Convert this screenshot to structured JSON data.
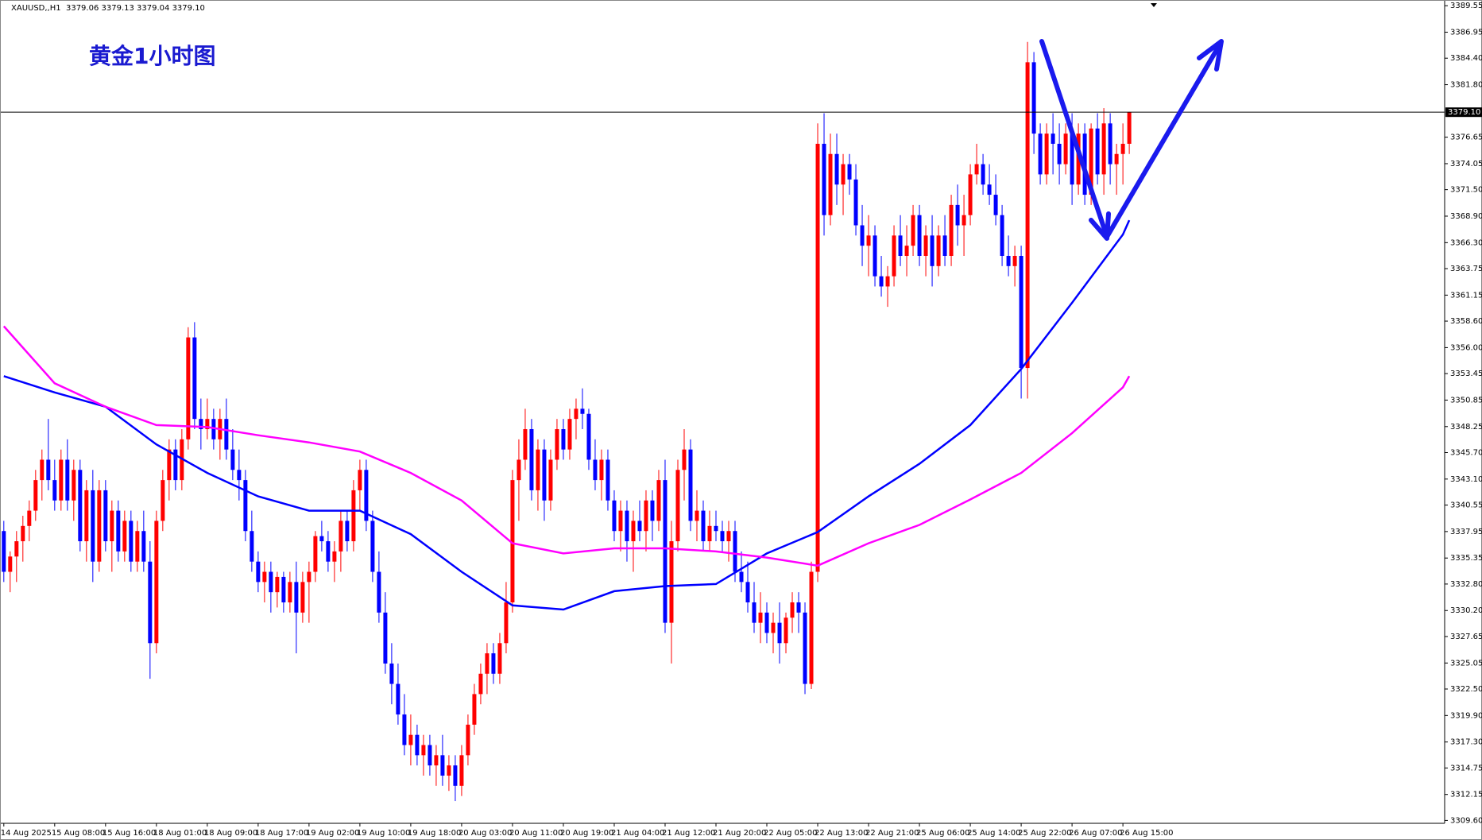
{
  "chart_data": {
    "type": "candlestick",
    "symbol_info": "XAUUSD,,H1  3379.06 3379.13 3379.04 3379.10",
    "title": "黄金1小时图",
    "up_color": "#ff0000",
    "down_color": "#0000ff",
    "ylim": [
      3309.32,
      3390.11
    ],
    "yticks": [
      3389.55,
      3386.95,
      {
        "value": 3384.4,
        "label": "3384.40"
      },
      {
        "value": 3381.8,
        "label": "3381.80"
      },
      3376.65,
      3374.05,
      {
        "value": 3371.5,
        "label": "3371.50"
      },
      {
        "value": 3368.9,
        "label": "3368.90"
      },
      {
        "value": 3366.3,
        "label": "3366.30"
      },
      3363.75,
      3361.15,
      {
        "value": 3358.6,
        "label": "3358.60"
      },
      {
        "value": 3356,
        "label": "3356.00"
      },
      3353.45,
      3350.85,
      3348.25,
      {
        "value": 3345.7,
        "label": "3345.70"
      },
      {
        "value": 3343.1,
        "label": "3343.10"
      },
      3340.55,
      3337.95,
      3335.35,
      {
        "value": 3332.8,
        "label": "3332.80"
      },
      {
        "value": 3330.2,
        "label": "3330.20"
      },
      3327.65,
      3325.05,
      {
        "value": 3322.5,
        "label": "3322.50"
      },
      {
        "value": 3319.9,
        "label": "3319.90"
      },
      {
        "value": 3317.3,
        "label": "3317.30"
      },
      3314.75,
      3312.15,
      {
        "value": 3309.6,
        "label": "3309.60"
      }
    ],
    "price_line": {
      "value": 3379.1,
      "label": "3379.10"
    },
    "xlim": [
      -0.6,
      226.6
    ],
    "xticks": [
      {
        "value": 0,
        "label": "14 Aug 2025"
      },
      {
        "value": 8,
        "label": "15 Aug 08:00"
      },
      {
        "value": 16,
        "label": "15 Aug 16:00"
      },
      {
        "value": 24,
        "label": "18 Aug 01:00"
      },
      {
        "value": 32,
        "label": "18 Aug 09:00"
      },
      {
        "value": 40,
        "label": "18 Aug 17:00"
      },
      {
        "value": 48,
        "label": "19 Aug 02:00"
      },
      {
        "value": 56,
        "label": "19 Aug 10:00"
      },
      {
        "value": 64,
        "label": "19 Aug 18:00"
      },
      {
        "value": 72,
        "label": "20 Aug 03:00"
      },
      {
        "value": 80,
        "label": "20 Aug 11:00"
      },
      {
        "value": 88,
        "label": "20 Aug 19:00"
      },
      {
        "value": 96,
        "label": "21 Aug 04:00"
      },
      {
        "value": 104,
        "label": "21 Aug 12:00"
      },
      {
        "value": 112,
        "label": "21 Aug 20:00"
      },
      {
        "value": 120,
        "label": "22 Aug 05:00"
      },
      {
        "value": 128,
        "label": "22 Aug 13:00"
      },
      {
        "value": 136,
        "label": "22 Aug 21:00"
      },
      {
        "value": 144,
        "label": "25 Aug 06:00"
      },
      {
        "value": 152,
        "label": "25 Aug 14:00"
      },
      {
        "value": 160,
        "label": "25 Aug 22:00"
      },
      {
        "value": 168,
        "label": "26 Aug 07:00"
      },
      {
        "value": 176,
        "label": "26 Aug 15:00"
      }
    ],
    "open": [
      3338,
      3334,
      3335.5,
      3337,
      3338.5,
      3340,
      3343,
      3345,
      3343,
      3341,
      3345,
      3341,
      3344,
      3337,
      3342,
      3335,
      3342,
      3337,
      3340,
      3336,
      3339,
      3335,
      3338,
      3335,
      3327,
      3339,
      3343,
      3346,
      3343,
      3347,
      3357,
      3349,
      3348,
      3349,
      3347,
      3349,
      3346,
      3344,
      3343,
      3338,
      3335,
      3333,
      3334,
      3332,
      3333.5,
      3331,
      3333,
      3330,
      3333,
      3334,
      3337.5,
      3337,
      3335,
      3336,
      3339,
      3337,
      3342,
      3344,
      3339,
      3334,
      3330,
      3325,
      3323,
      3320,
      3317,
      3318,
      3316,
      3317,
      3315,
      3316,
      3314,
      3315,
      3313,
      3316,
      3319,
      3322,
      3324,
      3326,
      3324,
      3327,
      3331,
      3343,
      3345,
      3348,
      3342,
      3346,
      3341,
      3345,
      3348,
      3346,
      3349,
      3350,
      3349.5,
      3345,
      3343,
      3345,
      3341,
      3338,
      3340,
      3337,
      3339,
      3338,
      3341,
      3339,
      3343,
      3329,
      3337,
      3344,
      3346,
      3339,
      3340,
      3337,
      3338.5,
      3338,
      3337,
      3338,
      3334,
      3333,
      3331,
      3329,
      3330,
      3328,
      3329,
      3327,
      3329.5,
      3331,
      3330,
      3323,
      3334,
      3376,
      3369,
      3375,
      3372,
      3374,
      3372.5,
      3368,
      3366,
      3367,
      3363,
      3362,
      3363,
      3367,
      3365,
      3366,
      3369,
      3365,
      3367,
      3364,
      3367,
      3365,
      3370,
      3368,
      3369,
      3373,
      3374,
      3372,
      3371,
      3369,
      3365,
      3364,
      3365,
      3354,
      3384,
      3377,
      3373,
      3377,
      3376,
      3374,
      3377,
      3372,
      3377,
      3371,
      3377.5,
      3373,
      3378,
      3374,
      3375,
      3376
    ],
    "high": [
      3339,
      3336,
      3338,
      3339.5,
      3341,
      3344,
      3346,
      3349,
      3345,
      3346,
      3347,
      3345,
      3345,
      3343,
      3344,
      3343,
      3343,
      3341,
      3341,
      3340,
      3340,
      3339,
      3340,
      3337,
      3340,
      3344,
      3347,
      3347,
      3348,
      3358,
      3358.5,
      3351,
      3351,
      3350,
      3350,
      3351,
      3348,
      3346,
      3344,
      3340,
      3336,
      3335,
      3335,
      3334,
      3334,
      3334,
      3335,
      3334,
      3335,
      3338,
      3339,
      3338,
      3337,
      3340,
      3340,
      3343,
      3345,
      3345,
      3340,
      3336,
      3332,
      3327,
      3325,
      3322,
      3320,
      3319,
      3318,
      3318,
      3317,
      3318,
      3316,
      3316,
      3317,
      3320,
      3323,
      3325,
      3327,
      3327,
      3328,
      3333,
      3344,
      3347,
      3350,
      3349,
      3347,
      3347,
      3346,
      3349,
      3349,
      3350,
      3351,
      3352,
      3350,
      3347,
      3346,
      3346,
      3342,
      3341,
      3341,
      3340,
      3341,
      3342,
      3342,
      3344,
      3345,
      3339,
      3345,
      3348,
      3347,
      3342,
      3341,
      3340,
      3340,
      3339,
      3339,
      3339,
      3336,
      3335,
      3333,
      3332,
      3331,
      3330,
      3331,
      3330,
      3332,
      3332,
      3331,
      3335,
      3378,
      3379,
      3377,
      3377,
      3375,
      3375,
      3374,
      3370,
      3369,
      3368,
      3365,
      3364,
      3368,
      3369,
      3368,
      3370,
      3370,
      3368,
      3369,
      3368,
      3369,
      3371,
      3372,
      3371,
      3374,
      3376,
      3375,
      3374,
      3373,
      3370,
      3367,
      3366,
      3366,
      3386,
      3385,
      3378,
      3378,
      3379,
      3378,
      3378,
      3379,
      3378,
      3378,
      3378,
      3379,
      3379.5,
      3379,
      3376,
      3378,
      3379.13
    ],
    "low": [
      3333,
      3332,
      3333,
      3335,
      3337,
      3339,
      3341,
      3342,
      3340,
      3340,
      3340,
      3339,
      3336,
      3335,
      3333,
      3334,
      3336,
      3334,
      3335,
      3335,
      3334,
      3334,
      3334,
      3323.5,
      3326,
      3338,
      3341,
      3342,
      3342,
      3346,
      3348,
      3346,
      3347,
      3346,
      3345,
      3345,
      3343,
      3341,
      3337,
      3334,
      3332,
      3331,
      3330,
      3330.5,
      3330,
      3330,
      3326,
      3329,
      3329,
      3333,
      3336,
      3334,
      3333,
      3334,
      3336,
      3336,
      3340,
      3338,
      3333,
      3329,
      3324,
      3321,
      3319,
      3316,
      3315,
      3315,
      3314,
      3314,
      3313,
      3313,
      3312.5,
      3311.5,
      3312,
      3315,
      3318,
      3321,
      3322,
      3323,
      3323,
      3326,
      3330,
      3339,
      3344,
      3341,
      3340,
      3339,
      3340,
      3344,
      3345,
      3345,
      3347,
      3348,
      3344,
      3342,
      3341,
      3340,
      3337,
      3336,
      3335,
      3334,
      3337,
      3336,
      3337,
      3338,
      3328,
      3325,
      3336,
      3341,
      3338,
      3337,
      3336,
      3336,
      3337,
      3336,
      3335,
      3333,
      3332,
      3330,
      3328,
      3327,
      3327,
      3326,
      3325,
      3326,
      3328,
      3328,
      3322,
      3322.5,
      3333,
      3367,
      3368,
      3370,
      3369,
      3371,
      3367,
      3364,
      3363,
      3362,
      3361,
      3360,
      3362,
      3364,
      3363,
      3365,
      3364,
      3363,
      3362,
      3363,
      3364,
      3364,
      3366,
      3365,
      3368,
      3372,
      3371,
      3370,
      3368,
      3364,
      3363,
      3362,
      3351,
      3351,
      3375,
      3372,
      3372,
      3373,
      3372,
      3373,
      3370,
      3371,
      3370,
      3370,
      3372,
      3371,
      3372,
      3371,
      3372,
      3375
    ],
    "close": [
      3334,
      3335.5,
      3337,
      3338.5,
      3340,
      3343,
      3345,
      3343,
      3341,
      3345,
      3341,
      3344,
      3337,
      3342,
      3335,
      3342,
      3337,
      3340,
      3336,
      3339,
      3335,
      3338,
      3335,
      3327,
      3339,
      3343,
      3346,
      3343,
      3347,
      3357,
      3349,
      3348,
      3349,
      3347,
      3349,
      3346,
      3344,
      3343,
      3338,
      3335,
      3333,
      3334,
      3332,
      3333.5,
      3331,
      3333,
      3330,
      3333,
      3334,
      3337.5,
      3337,
      3335,
      3336,
      3339,
      3337,
      3342,
      3344,
      3339,
      3334,
      3330,
      3325,
      3323,
      3320,
      3317,
      3318,
      3316,
      3317,
      3315,
      3316,
      3314,
      3315,
      3313,
      3316,
      3319,
      3322,
      3324,
      3326,
      3324,
      3327,
      3331,
      3343,
      3345,
      3348,
      3342,
      3346,
      3341,
      3345,
      3348,
      3346,
      3349,
      3350,
      3349.5,
      3345,
      3343,
      3345,
      3341,
      3338,
      3340,
      3337,
      3339,
      3338,
      3341,
      3339,
      3343,
      3329,
      3337,
      3344,
      3346,
      3339,
      3340,
      3337,
      3338.5,
      3338,
      3337,
      3338,
      3334,
      3333,
      3331,
      3329,
      3330,
      3328,
      3329,
      3327,
      3329.5,
      3331,
      3330,
      3323,
      3334,
      3376,
      3369,
      3375,
      3372,
      3374,
      3372.5,
      3368,
      3366,
      3367,
      3363,
      3362,
      3363,
      3367,
      3365,
      3366,
      3369,
      3365,
      3367,
      3364,
      3367,
      3365,
      3370,
      3368,
      3369,
      3373,
      3374,
      3372,
      3371,
      3369,
      3365,
      3364,
      3365,
      3354,
      3384,
      3377,
      3373,
      3377,
      3376,
      3374,
      3377,
      3372,
      3377,
      3371,
      3377.5,
      3373,
      3378,
      3374,
      3375,
      3376,
      3379.1
    ],
    "moving_averages": [
      {
        "color": "#0000ff",
        "x": [
          0,
          8,
          16,
          24,
          32,
          40,
          48,
          56,
          64,
          72,
          80,
          88,
          96,
          104,
          112,
          120,
          128,
          136,
          144,
          152,
          160,
          168,
          176,
          177
        ],
        "values": [
          3353.2,
          3351.6,
          3350.2,
          3346.5,
          3343.7,
          3341.4,
          3340,
          3340,
          3337.7,
          3334,
          3330.7,
          3330.3,
          3332.1,
          3332.6,
          3332.8,
          3335.8,
          3337.9,
          3341.4,
          3344.6,
          3348.4,
          3353.9,
          3360.4,
          3367.1,
          3368.5
        ]
      },
      {
        "color": "#ff00ff",
        "x": [
          0,
          8,
          16,
          24,
          32,
          40,
          48,
          56,
          64,
          72,
          80,
          88,
          96,
          104,
          112,
          120,
          128,
          136,
          144,
          152,
          160,
          168,
          176,
          177
        ],
        "values": [
          3358.1,
          3352.5,
          3350.2,
          3348.4,
          3348.2,
          3347.4,
          3346.7,
          3345.8,
          3343.7,
          3341,
          3336.8,
          3335.8,
          3336.3,
          3336.3,
          3336,
          3335.4,
          3334.6,
          3336.8,
          3338.6,
          3341.1,
          3343.7,
          3347.6,
          3352.1,
          3353.2
        ]
      }
    ]
  }
}
